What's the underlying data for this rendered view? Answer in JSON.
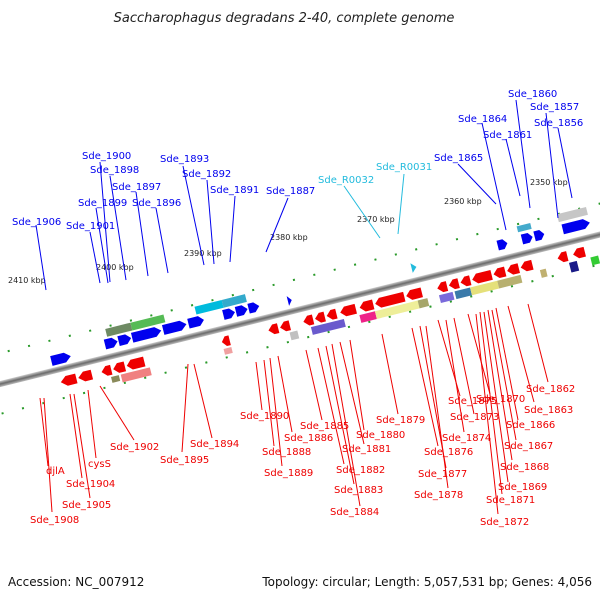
{
  "title": "Saccharophagus degradans 2-40, complete genome",
  "footer": {
    "accession": "Accession: NC_007912",
    "summary": "Topology: circular; Length: 5,057,531 bp; Genes: 4,056"
  },
  "colors": {
    "forward_gene": "#0000ee",
    "reverse_gene": "#ee0000",
    "rna_gene": "#22bbdd",
    "backbone": "#777777",
    "tick": "#228822"
  },
  "kbp_ticks": [
    "2410 kbp",
    "2400 kbp",
    "2390 kbp",
    "2380 kbp",
    "2370 kbp",
    "2360 kbp",
    "2350 kbp"
  ],
  "labels": {
    "top": [
      "Sde_1906",
      "Sde_1901",
      "Sde_1899",
      "Sde_1900",
      "Sde_1898",
      "Sde_1897",
      "Sde_1896",
      "Sde_1893",
      "Sde_1892",
      "Sde_1891",
      "Sde_1887",
      "Sde_1865",
      "Sde_1864",
      "Sde_1860",
      "Sde_1861",
      "Sde_1857",
      "Sde_1856"
    ],
    "rna": [
      "Sde_R0032",
      "Sde_R0031"
    ],
    "bottom": [
      "djlA",
      "Sde_1908",
      "Sde_1904",
      "Sde_1905",
      "cysS",
      "Sde_1902",
      "Sde_1895",
      "Sde_1894",
      "Sde_1890",
      "Sde_1888",
      "Sde_1889",
      "Sde_1886",
      "Sde_1885",
      "Sde_1882",
      "Sde_1883",
      "Sde_1884",
      "Sde_1881",
      "Sde_1880",
      "Sde_1879",
      "Sde_1876",
      "Sde_1877",
      "Sde_1878",
      "Sde_1875",
      "Sde_1874",
      "Sde_1873",
      "Sde_1870",
      "Sde_1872",
      "Sde_1871",
      "Sde_1869",
      "Sde_1868",
      "Sde_1867",
      "Sde_1866",
      "Sde_1863",
      "Sde_1862"
    ]
  }
}
